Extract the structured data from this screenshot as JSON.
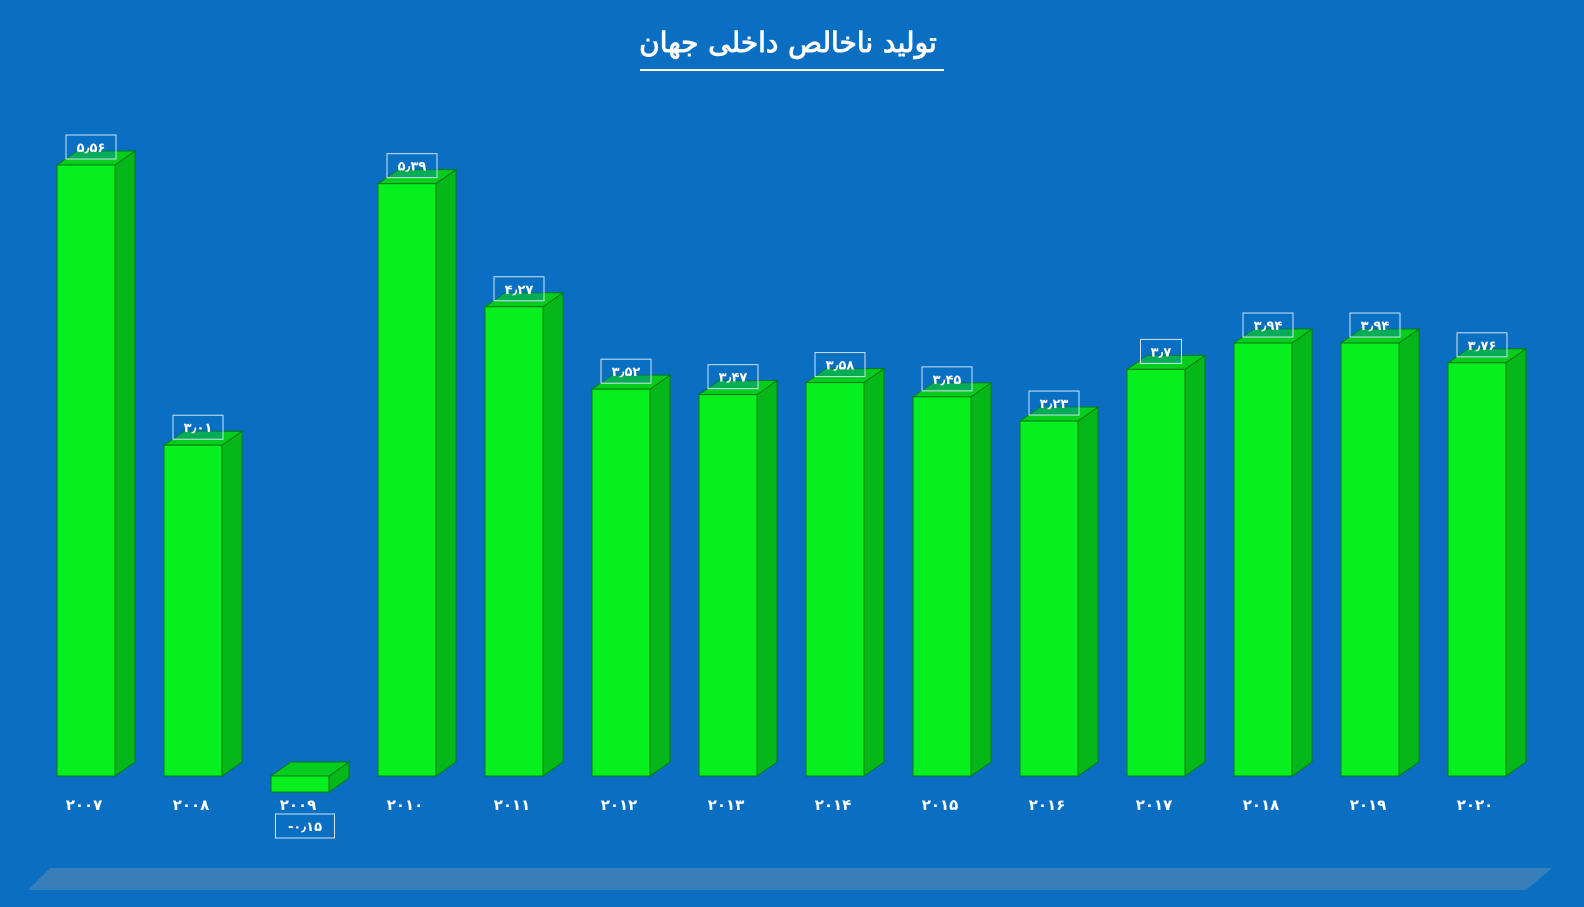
{
  "chart_data": {
    "type": "bar",
    "title": "تولید ناخالص داخلی جهان",
    "categories": [
      "۲۰۰۷",
      "۲۰۰۸",
      "۲۰۰۹",
      "۲۰۱۰",
      "۲۰۱۱",
      "۲۰۱۲",
      "۲۰۱۳",
      "۲۰۱۴",
      "۲۰۱۵",
      "۲۰۱۶",
      "۲۰۱۷",
      "۲۰۱۸",
      "۲۰۱۹",
      "۲۰۲۰"
    ],
    "values": [
      5.56,
      3.01,
      -0.15,
      5.39,
      4.27,
      3.52,
      3.47,
      3.58,
      3.45,
      3.23,
      3.7,
      3.94,
      3.94,
      3.76
    ],
    "value_labels": [
      "۵٫۵۶",
      "۳٫۰۱",
      "-۰٫۱۵",
      "۵٫۳۹",
      "۴٫۲۷",
      "۳٫۵۲",
      "۳٫۴۷",
      "۳٫۵۸",
      "۳٫۴۵",
      "۳٫۲۳",
      "۳٫۷",
      "۳٫۹۴",
      "۳٫۹۴",
      "۳٫۷۶"
    ],
    "xlabel": "",
    "ylabel": "",
    "ylim": [
      0,
      5.56
    ],
    "grid": false,
    "legend": "none",
    "colors": {
      "background": "#0a6fc2",
      "bar_front": "#05f01e",
      "bar_side": "#04b81a",
      "bar_top": "#06cc1d",
      "bar_edge": "#037a13",
      "floor": "#3f82b8",
      "text": "#ffffff"
    }
  }
}
